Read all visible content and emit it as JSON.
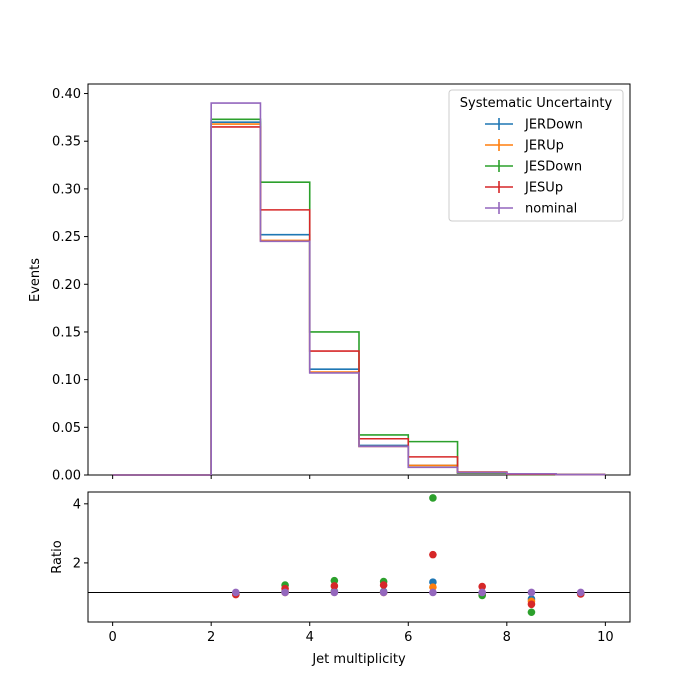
{
  "chart_data": [
    {
      "type": "step",
      "ylabel": "Events",
      "xlim": [
        -0.5,
        10.5
      ],
      "ylim": [
        0,
        0.41
      ],
      "yticks": [
        "0.00",
        "0.05",
        "0.10",
        "0.15",
        "0.20",
        "0.25",
        "0.30",
        "0.35",
        "0.40"
      ],
      "ytick_values": [
        0,
        0.05,
        0.1,
        0.15,
        0.2,
        0.25,
        0.3,
        0.35,
        0.4
      ],
      "bin_edges": [
        0,
        1,
        2,
        3,
        4,
        5,
        6,
        7,
        8,
        9,
        10
      ],
      "legend": {
        "title": "Systematic Uncertainty",
        "placement": "top-right"
      },
      "series": [
        {
          "name": "JERDown",
          "color": "#1f77b4",
          "values": [
            0,
            0,
            0.37,
            0.252,
            0.111,
            0.031,
            0.01,
            0.003,
            0.001,
            0.0005
          ]
        },
        {
          "name": "JERUp",
          "color": "#ff7f0e",
          "values": [
            0,
            0,
            0.368,
            0.246,
            0.108,
            0.03,
            0.01,
            0.002,
            0.0008,
            0.0005
          ]
        },
        {
          "name": "JESDown",
          "color": "#2ca02c",
          "values": [
            0,
            0,
            0.373,
            0.307,
            0.15,
            0.042,
            0.035,
            0.002,
            0.0004,
            0.0005
          ]
        },
        {
          "name": "JESUp",
          "color": "#d62728",
          "values": [
            0,
            0,
            0.365,
            0.278,
            0.13,
            0.038,
            0.019,
            0.003,
            0.0007,
            0.0005
          ]
        },
        {
          "name": "nominal",
          "color": "#9467bd",
          "values": [
            0,
            0,
            0.39,
            0.245,
            0.107,
            0.03,
            0.008,
            0.0025,
            0.0012,
            0.0005
          ]
        }
      ]
    },
    {
      "type": "scatter",
      "xlabel": "Jet multiplicity",
      "ylabel": "Ratio",
      "xlim": [
        -0.5,
        10.5
      ],
      "ylim": [
        0,
        4.4
      ],
      "xticks": [
        "0",
        "2",
        "4",
        "6",
        "8",
        "10"
      ],
      "xtick_values": [
        0,
        2,
        4,
        6,
        8,
        10
      ],
      "yticks": [
        "2",
        "4"
      ],
      "ytick_values": [
        2,
        4
      ],
      "reference_line": 1,
      "x": [
        2.5,
        3.5,
        4.5,
        5.5,
        6.5,
        7.5,
        8.5,
        9.5
      ],
      "series": [
        {
          "name": "JERDown",
          "color": "#1f77b4",
          "values": [
            0.95,
            1.03,
            1.04,
            1.03,
            1.35,
            0.97,
            0.78,
            0.97
          ]
        },
        {
          "name": "JERUp",
          "color": "#ff7f0e",
          "values": [
            0.94,
            1.0,
            1.01,
            1.0,
            1.18,
            0.93,
            0.7,
            0.96
          ]
        },
        {
          "name": "JESDown",
          "color": "#2ca02c",
          "values": [
            0.96,
            1.25,
            1.4,
            1.37,
            4.2,
            0.9,
            0.33,
            0.96
          ]
        },
        {
          "name": "JESUp",
          "color": "#d62728",
          "values": [
            0.93,
            1.13,
            1.22,
            1.25,
            2.28,
            1.2,
            0.6,
            0.95
          ]
        },
        {
          "name": "nominal",
          "color": "#9467bd",
          "values": [
            1.0,
            1.0,
            1.0,
            1.0,
            1.0,
            1.0,
            1.0,
            1.0
          ]
        }
      ]
    }
  ]
}
